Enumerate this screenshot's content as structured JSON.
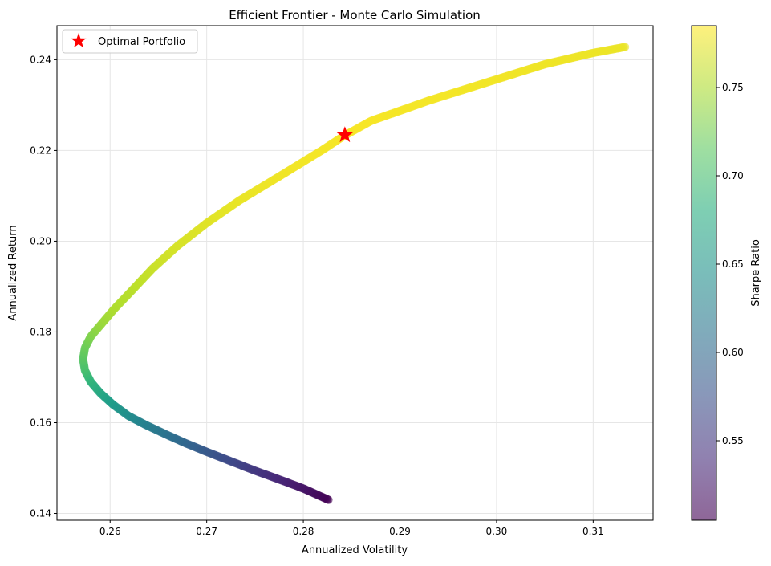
{
  "chart_data": {
    "type": "scatter",
    "title": "Efficient Frontier - Monte Carlo Simulation",
    "xlabel": "Annualized Volatility",
    "ylabel": "Annualized Return",
    "xlim": [
      0.2545,
      0.3162
    ],
    "ylim": [
      0.1385,
      0.2475
    ],
    "x_ticks": [
      0.26,
      0.27,
      0.28,
      0.29,
      0.3,
      0.31
    ],
    "x_tick_labels": [
      "0.26",
      "0.27",
      "0.28",
      "0.29",
      "0.30",
      "0.31"
    ],
    "y_ticks": [
      0.14,
      0.16,
      0.18,
      0.2,
      0.22,
      0.24
    ],
    "y_tick_labels": [
      "0.14",
      "0.16",
      "0.18",
      "0.20",
      "0.22",
      "0.24"
    ],
    "grid": true,
    "legend_position": "top-left",
    "legend": [
      {
        "label": "Optimal Portfolio",
        "marker": "star",
        "color": "#ff0000"
      }
    ],
    "series": [
      {
        "kind": "scatter-frontier",
        "x": [
          0.2826,
          0.28,
          0.2775,
          0.2749,
          0.2725,
          0.2701,
          0.2678,
          0.2657,
          0.2637,
          0.2619,
          0.2603,
          0.259,
          0.258,
          0.2574,
          0.2572,
          0.2574,
          0.258,
          0.259,
          0.2604,
          0.2622,
          0.2644,
          0.267,
          0.27,
          0.2734,
          0.2773,
          0.2819,
          0.2842,
          0.287,
          0.293,
          0.299,
          0.305,
          0.31,
          0.3133
        ],
        "y": [
          0.143,
          0.1455,
          0.1475,
          0.1495,
          0.1515,
          0.1535,
          0.1555,
          0.1575,
          0.1595,
          0.1615,
          0.164,
          0.1665,
          0.169,
          0.1715,
          0.174,
          0.1765,
          0.179,
          0.1815,
          0.185,
          0.189,
          0.194,
          0.199,
          0.204,
          0.209,
          0.214,
          0.22,
          0.2232,
          0.2265,
          0.231,
          0.235,
          0.239,
          0.2415,
          0.2428
        ],
        "sharpe": [
          0.505,
          0.52,
          0.535,
          0.55,
          0.565,
          0.58,
          0.595,
          0.61,
          0.625,
          0.64,
          0.655,
          0.67,
          0.685,
          0.7,
          0.71,
          0.72,
          0.73,
          0.74,
          0.75,
          0.755,
          0.762,
          0.768,
          0.772,
          0.776,
          0.779,
          0.781,
          0.782,
          0.782,
          0.781,
          0.78,
          0.779,
          0.778,
          0.777
        ]
      }
    ],
    "optimal_point": {
      "x": 0.2843,
      "y": 0.2234,
      "label": "Optimal Portfolio"
    },
    "colorbar": {
      "label": "Sharpe Ratio",
      "range": [
        0.505,
        0.785
      ],
      "ticks": [
        0.55,
        0.6,
        0.65,
        0.7,
        0.75
      ],
      "tick_labels": [
        "0.55",
        "0.60",
        "0.65",
        "0.70",
        "0.75"
      ],
      "colormap": "viridis",
      "alpha": 0.6
    },
    "colors": {
      "star": "#ff0000",
      "grid": "#e6e6e6",
      "axis": "#000000"
    }
  }
}
